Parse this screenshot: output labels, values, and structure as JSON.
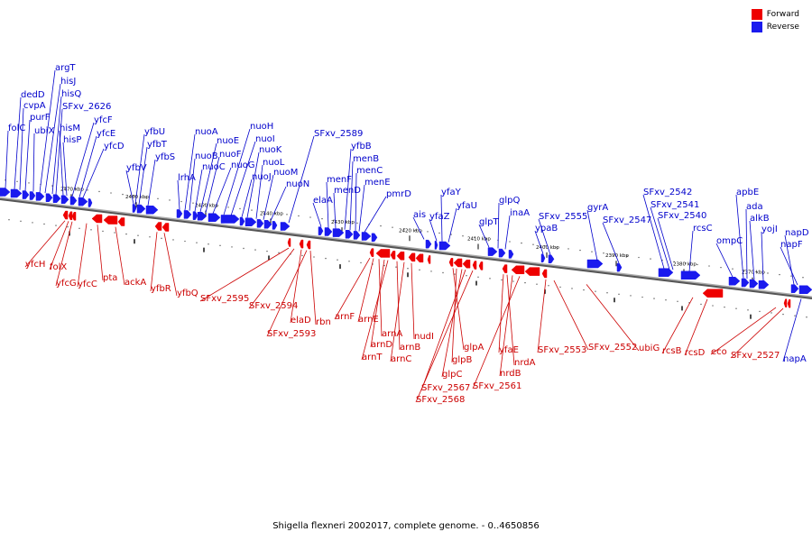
{
  "legend": {
    "forward_label": "Forward",
    "reverse_label": "Reverse",
    "forward_color": "#ee0000",
    "reverse_color": "#1a1aee"
  },
  "caption": "Shigella flexneri 2002017, complete genome. - 0..4650856",
  "kbp_marks": [
    "2470 kbp",
    "2460 kbp",
    "2450 kbp",
    "2440 kbp",
    "2430 kbp",
    "2420 kbp",
    "2410 kbp",
    "2400 kbp",
    "2390 kbp",
    "2380 kbp",
    "2370 kbp"
  ],
  "reverse_genes": [
    "folC",
    "dedD",
    "cvpA",
    "purF",
    "ubiX",
    "argT",
    "hisJ",
    "hisQ",
    "SFxv_2626",
    "hisM",
    "hisP",
    "yfcF",
    "yfcE",
    "yfcD",
    "yfbV",
    "yfbU",
    "yfbT",
    "yfbS",
    "lrhA",
    "nuoA",
    "nuoB",
    "nuoC",
    "nuoE",
    "nuoF",
    "nuoG",
    "nuoH",
    "nuoI",
    "nuoJ",
    "nuoK",
    "nuoL",
    "nuoM",
    "nuoN",
    "SFxv_2589",
    "elaA",
    "menF",
    "menD",
    "yfbB",
    "menB",
    "menC",
    "menE",
    "pmrD",
    "ais",
    "yfaZ",
    "yfaY",
    "yfaU",
    "glpT",
    "glpQ",
    "inaA",
    "ypaB",
    "SFxv_2555",
    "gyrA",
    "SFxv_2547",
    "SFxv_2542",
    "SFxv_2541",
    "SFxv_2540",
    "rcsC",
    "ompC",
    "apbE",
    "ada",
    "alkB",
    "yojI",
    "napD",
    "napF",
    "napA"
  ],
  "forward_genes": [
    "yfcH",
    "folX",
    "yfcG",
    "yfcC",
    "pta",
    "ackA",
    "yfbR",
    "yfbQ",
    "SFxv_2595",
    "SFxv_2594",
    "elaD",
    "SFxv_2593",
    "rbn",
    "arnF",
    "arnE",
    "arnA",
    "arnD",
    "arnT",
    "arnB",
    "arnC",
    "nudI",
    "glpA",
    "glpB",
    "glpC",
    "SFxv_2567",
    "SFxv_2568",
    "yfaE",
    "nrdA",
    "nrdB",
    "SFxv_2561",
    "SFxv_2553",
    "SFxv_2552",
    "ubiG",
    "rcsB",
    "rcsD",
    "eco",
    "SFxv_2527"
  ]
}
